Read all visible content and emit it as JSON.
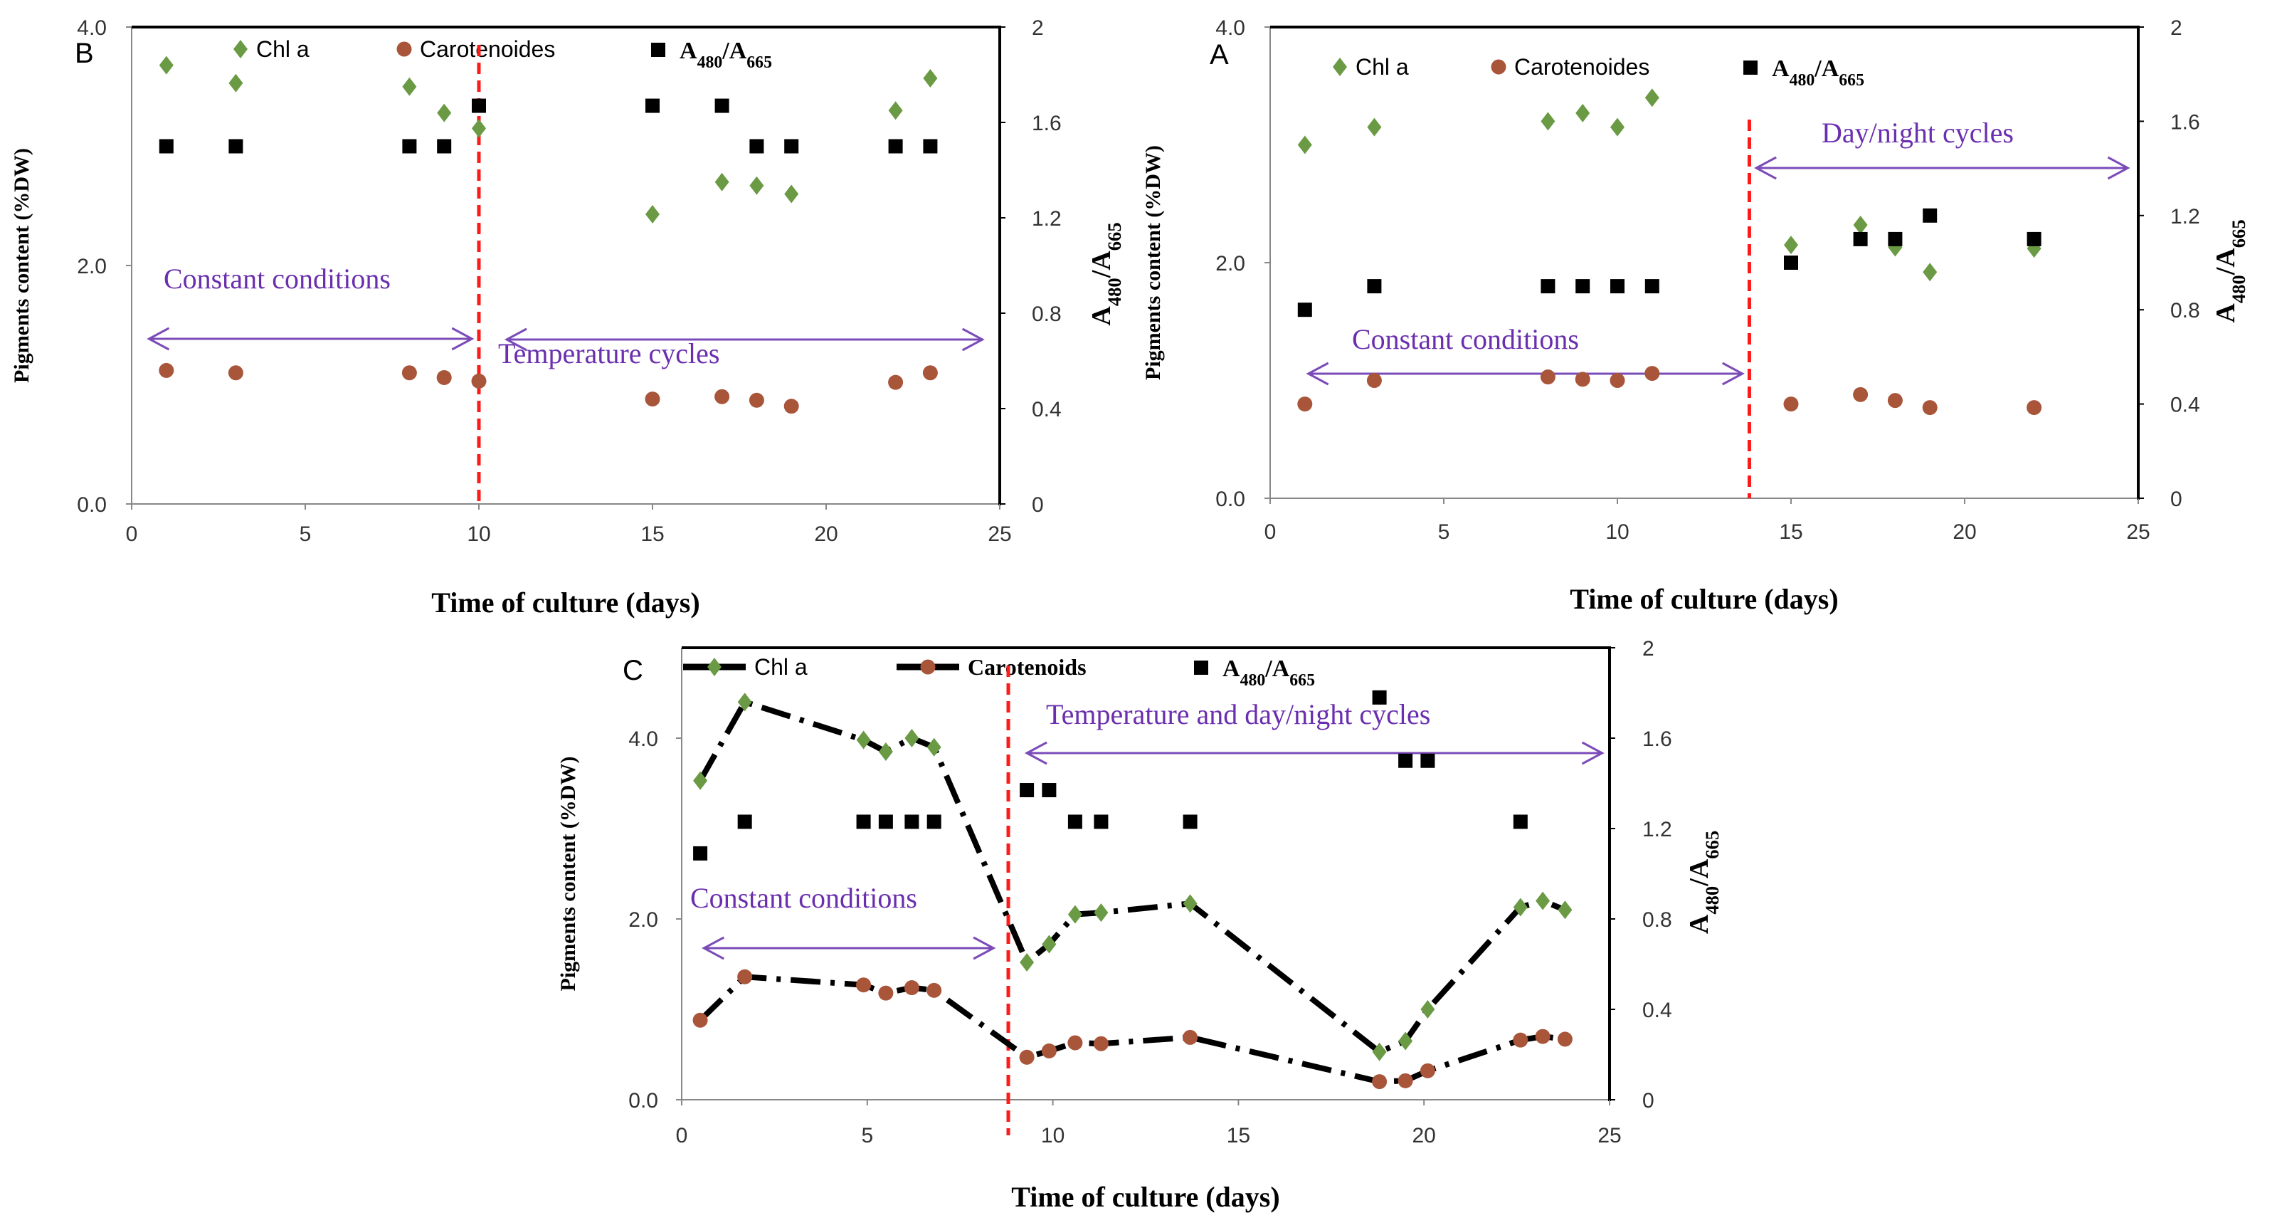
{
  "colors": {
    "chl": "#6a9a44",
    "car": "#a8553a",
    "ratio": "#000000",
    "divider": "#ff1a1a",
    "arrow": "#7b4bb8",
    "annot": "#6a2fae"
  },
  "chart_data": [
    {
      "id": "B",
      "type": "scatter",
      "panel_label": "B",
      "xlabel": "Time of culture (days)",
      "ylabel": "Pigments content (%DW)",
      "y2label": "A480/A665",
      "xlim": [
        0,
        25
      ],
      "ylim": [
        0,
        4
      ],
      "y2lim": [
        0,
        2
      ],
      "xticks": [
        "0",
        "5",
        "10",
        "15",
        "20",
        "25"
      ],
      "yticks": [
        "0.0",
        "2.0",
        "4.0"
      ],
      "y2ticks": [
        "0",
        "0.4",
        "0.8",
        "1.2",
        "1.6",
        "2"
      ],
      "legend": {
        "chl": "Chl a",
        "car": "Carotenoides",
        "ratio": "A480/A665"
      },
      "divider_x": 10,
      "annotations": [
        {
          "text": "Constant conditions",
          "from_x": 0.5,
          "to_x": 9.8
        },
        {
          "text": "Temperature cycles",
          "from_x": 10.8,
          "to_x": 24.5
        }
      ],
      "series": [
        {
          "name": "Chl a",
          "marker": "diamond",
          "x": [
            1,
            3,
            8,
            9,
            10,
            15,
            17,
            18,
            19,
            22,
            23
          ],
          "y": [
            3.68,
            3.53,
            3.5,
            3.28,
            3.15,
            2.43,
            2.7,
            2.67,
            2.6,
            3.3,
            3.57
          ]
        },
        {
          "name": "Carotenoides",
          "marker": "circle",
          "x": [
            1,
            3,
            8,
            9,
            10,
            15,
            17,
            18,
            19,
            22,
            23
          ],
          "y": [
            1.12,
            1.1,
            1.1,
            1.06,
            1.03,
            0.88,
            0.9,
            0.87,
            0.82,
            1.02,
            1.1
          ]
        },
        {
          "name": "A480/A665",
          "marker": "square",
          "axis": "y2",
          "x": [
            1,
            3,
            8,
            9,
            10,
            15,
            17,
            18,
            19,
            22,
            23
          ],
          "y": [
            1.5,
            1.5,
            1.5,
            1.5,
            1.67,
            1.67,
            1.67,
            1.5,
            1.5,
            1.5,
            1.5
          ]
        }
      ]
    },
    {
      "id": "A",
      "type": "scatter",
      "panel_label": "A",
      "xlabel": "Time of culture (days)",
      "ylabel": "Pigments content (%DW)",
      "y2label": "A480/A665",
      "xlim": [
        0,
        25
      ],
      "ylim": [
        0,
        4
      ],
      "y2lim": [
        0,
        2
      ],
      "xticks": [
        "0",
        "5",
        "10",
        "15",
        "20",
        "25"
      ],
      "yticks": [
        "0.0",
        "2.0",
        "4.0"
      ],
      "y2ticks": [
        "0",
        "0.4",
        "0.8",
        "1.2",
        "1.6",
        "2"
      ],
      "legend": {
        "chl": "Chl a",
        "car": "Carotenoides",
        "ratio": "A480/A665"
      },
      "divider_x": 13.8,
      "annotations": [
        {
          "text": "Constant conditions",
          "from_x": 1.1,
          "to_x": 13.6
        },
        {
          "text": "Day/night cycles",
          "from_x": 14,
          "to_x": 24.7
        }
      ],
      "series": [
        {
          "name": "Chl a",
          "marker": "diamond",
          "x": [
            1,
            3,
            8,
            9,
            10,
            11,
            15,
            17,
            18,
            19,
            22
          ],
          "y": [
            3.0,
            3.15,
            3.2,
            3.27,
            3.15,
            3.4,
            2.15,
            2.32,
            2.13,
            1.92,
            2.12
          ]
        },
        {
          "name": "Carotenoides",
          "marker": "circle",
          "x": [
            1,
            3,
            8,
            9,
            10,
            11,
            15,
            17,
            18,
            19,
            22
          ],
          "y": [
            0.8,
            1.0,
            1.03,
            1.01,
            1.0,
            1.06,
            0.8,
            0.88,
            0.83,
            0.77,
            0.77
          ]
        },
        {
          "name": "A480/A665",
          "marker": "square",
          "axis": "y2",
          "x": [
            1,
            3,
            8,
            9,
            10,
            11,
            15,
            17,
            18,
            19,
            22
          ],
          "y": [
            0.8,
            0.9,
            0.9,
            0.9,
            0.9,
            0.9,
            1.0,
            1.1,
            1.1,
            1.2,
            1.1
          ]
        }
      ]
    },
    {
      "id": "C",
      "type": "line",
      "panel_label": "C",
      "xlabel": "Time of culture (days)",
      "ylabel": "Pigments content (%DW)",
      "y2label": "A480/A665",
      "xlim": [
        0,
        25
      ],
      "ylim": [
        0,
        5
      ],
      "y2lim": [
        0,
        2
      ],
      "xticks": [
        "0",
        "5",
        "10",
        "15",
        "20",
        "25"
      ],
      "yticks": [
        "0.0",
        "2.0",
        "4.0"
      ],
      "y2ticks": [
        "0",
        "0.4",
        "0.8",
        "1.2",
        "1.6",
        "2"
      ],
      "legend": {
        "chl": "Chl a",
        "car": "Carotenoids",
        "ratio": "A480/A665"
      },
      "divider_x": 8.8,
      "annotations": [
        {
          "text": "Constant conditions",
          "from_x": 0.6,
          "to_x": 8.4
        },
        {
          "text": "Temperature and day/night cycles",
          "from_x": 9.3,
          "to_x": 24.8
        }
      ],
      "series": [
        {
          "name": "Chl a",
          "marker": "diamond",
          "x": [
            0.5,
            1.7,
            4.9,
            5.5,
            6.2,
            6.8,
            9.3,
            9.9,
            10.6,
            11.3,
            13.7,
            18.8,
            19.5,
            20.1,
            22.6,
            23.2,
            23.8
          ],
          "y": [
            3.53,
            4.4,
            3.98,
            3.85,
            4.0,
            3.9,
            1.52,
            1.72,
            2.05,
            2.07,
            2.17,
            0.53,
            0.65,
            1.0,
            2.13,
            2.2,
            2.1
          ]
        },
        {
          "name": "Carotenoids",
          "marker": "circle",
          "x": [
            0.5,
            1.7,
            4.9,
            5.5,
            6.2,
            6.8,
            9.3,
            9.9,
            10.6,
            11.3,
            13.7,
            18.8,
            19.5,
            20.1,
            22.6,
            23.2,
            23.8
          ],
          "y": [
            0.88,
            1.36,
            1.27,
            1.18,
            1.24,
            1.21,
            0.47,
            0.54,
            0.63,
            0.62,
            0.69,
            0.2,
            0.21,
            0.32,
            0.66,
            0.7,
            0.67
          ]
        },
        {
          "name": "A480/A665",
          "marker": "square",
          "axis": "y2",
          "x": [
            0.5,
            1.7,
            4.9,
            5.5,
            6.2,
            6.8,
            9.3,
            9.9,
            10.6,
            11.3,
            13.7,
            18.8,
            19.5,
            20.1,
            22.6
          ],
          "y": [
            1.09,
            1.23,
            1.23,
            1.23,
            1.23,
            1.23,
            1.37,
            1.37,
            1.23,
            1.23,
            1.23,
            1.78,
            1.5,
            1.5,
            1.23
          ]
        }
      ]
    }
  ]
}
